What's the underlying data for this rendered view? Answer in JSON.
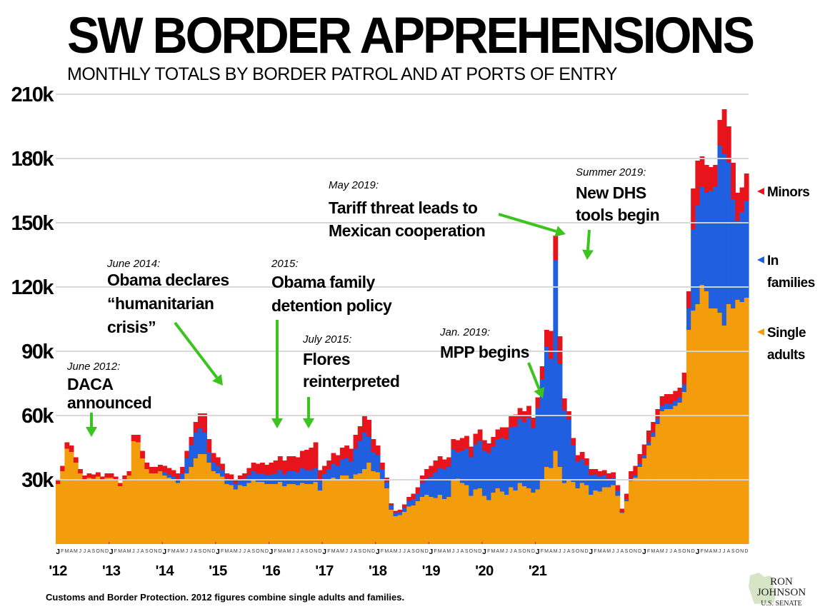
{
  "header": {
    "title": "SW BORDER APPREHENSIONS",
    "subtitle": "MONTHLY TOTALS BY BORDER PATROL AND AT PORTS OF ENTRY"
  },
  "footer": {
    "source": "Customs and Border Protection. 2012 figures combine single adults and families.",
    "logo_line1": "RON",
    "logo_line2": "JOHNSON",
    "logo_line3": "U.S. SENATE"
  },
  "chart_data": {
    "type": "bar",
    "stacked": true,
    "ylim": [
      0,
      210000
    ],
    "yticks": [
      30000,
      60000,
      90000,
      120000,
      150000,
      180000,
      210000
    ],
    "ytick_labels": [
      "30k",
      "60k",
      "90k",
      "120k",
      "150k",
      "180k",
      "210k"
    ],
    "grid": true,
    "month_letters": [
      "J",
      "F",
      "M",
      "A",
      "M",
      "J",
      "J",
      "A",
      "S",
      "O",
      "N",
      "D"
    ],
    "year_labels": [
      "'12",
      "'13",
      "'14",
      "'15",
      "'16",
      "'17",
      "'18",
      "'19",
      "'20",
      "'21"
    ],
    "colors": {
      "single_adults": "#f39c0c",
      "families": "#1f5fe0",
      "minors": "#e8141c",
      "annotation": "#3cc41e"
    },
    "legend": {
      "position": "right",
      "entries": [
        "Minors",
        "In families",
        "Single adults"
      ]
    },
    "series": [
      {
        "name": "Single adults",
        "values": [
          28000,
          34000,
          44500,
          43000,
          38000,
          33000,
          30000,
          31000,
          30500,
          31500,
          30000,
          31000,
          31000,
          30000,
          27000,
          30000,
          32000,
          48000,
          47500,
          40000,
          35000,
          33000,
          33000,
          34000,
          32000,
          31000,
          30000,
          28500,
          30000,
          33000,
          36000,
          40000,
          42000,
          42000,
          38000,
          34000,
          33000,
          31500,
          28000,
          27500,
          25500,
          27500,
          27000,
          28500,
          30000,
          29000,
          29000,
          28000,
          28000,
          28000,
          29000,
          27000,
          28000,
          28000,
          27500,
          28500,
          28000,
          28000,
          29000,
          25000,
          30000,
          30000,
          31000,
          30000,
          32000,
          32000,
          30500,
          32500,
          33000,
          35000,
          38000,
          34000,
          33500,
          30000,
          26000,
          16000,
          13000,
          13500,
          15000,
          17500,
          18000,
          20000,
          22000,
          23000,
          22000,
          21500,
          23000,
          21000,
          22000,
          30000,
          30500,
          28500,
          27500,
          22500,
          25500,
          26000,
          22500,
          20500,
          24000,
          26000,
          24500,
          23000,
          26500,
          25000,
          28500,
          27000,
          26000,
          24000,
          25500,
          30000,
          36000,
          35500,
          43500,
          36000,
          28500,
          30000,
          29000,
          26000,
          28500,
          27500,
          23000,
          25000,
          24500,
          26500,
          26500,
          27500,
          22500,
          14500,
          20000,
          29500,
          31000,
          36000,
          40000,
          46000,
          50000,
          56000,
          62000,
          63000,
          63000,
          64500,
          66000,
          71000,
          100000,
          109000,
          112000,
          121000,
          118000,
          110000,
          110000,
          108000,
          102000,
          112000,
          110000,
          114000,
          113000,
          115000
        ]
      },
      {
        "name": "In families",
        "values": [
          0,
          0,
          0,
          0,
          0,
          0,
          0,
          0,
          0,
          0,
          0,
          0,
          0,
          0,
          0,
          0,
          0,
          0,
          0,
          0,
          0,
          0,
          0,
          0,
          1500,
          1500,
          1500,
          1500,
          3000,
          7000,
          10000,
          12000,
          12000,
          10000,
          5000,
          4000,
          3500,
          3000,
          2500,
          2500,
          2500,
          2500,
          3500,
          3500,
          4000,
          4000,
          4000,
          4000,
          4500,
          5000,
          5500,
          5500,
          6000,
          6000,
          6000,
          7000,
          6500,
          6500,
          6500,
          4500,
          3000,
          5000,
          6500,
          6500,
          7500,
          8000,
          8000,
          12000,
          15000,
          17000,
          12000,
          9000,
          8000,
          5000,
          3000,
          2000,
          1500,
          1500,
          2000,
          2500,
          3000,
          3500,
          6500,
          7500,
          9500,
          12000,
          12500,
          14000,
          14000,
          14000,
          12500,
          15000,
          17000,
          18000,
          21000,
          22000,
          21000,
          22000,
          21500,
          23000,
          25000,
          26000,
          28000,
          30000,
          30000,
          30000,
          33000,
          30000,
          38000,
          47000,
          56000,
          51000,
          89000,
          48000,
          34000,
          28000,
          17000,
          12500,
          11000,
          9500,
          9000,
          7500,
          7000,
          5500,
          4000,
          3500,
          2500,
          500,
          1000,
          1000,
          1000,
          1500,
          1500,
          1500,
          2000,
          2500,
          2500,
          2500,
          2500,
          2500,
          2500,
          3500,
          10000,
          38000,
          46000,
          46000,
          46000,
          55000,
          57000,
          78000,
          80000,
          66000,
          51000,
          37000,
          42000,
          45000
        ]
      },
      {
        "name": "Minors",
        "values": [
          2000,
          2500,
          3000,
          3000,
          2500,
          2000,
          2000,
          2000,
          2000,
          2000,
          1500,
          2000,
          2000,
          1500,
          1500,
          2000,
          2000,
          3000,
          3500,
          3500,
          3000,
          3000,
          3000,
          3000,
          3000,
          3000,
          3000,
          3000,
          3000,
          3500,
          4000,
          5000,
          7000,
          9000,
          6000,
          4500,
          4000,
          3000,
          2500,
          2500,
          2000,
          2000,
          2500,
          3500,
          4000,
          4500,
          5000,
          5000,
          5500,
          6000,
          6500,
          6500,
          7000,
          7000,
          7000,
          8000,
          9500,
          10500,
          12000,
          5000,
          3500,
          4000,
          5000,
          5000,
          5500,
          6000,
          6000,
          6500,
          7000,
          8000,
          8000,
          6000,
          4500,
          3000,
          2000,
          1000,
          1000,
          1000,
          1500,
          2000,
          2500,
          3000,
          3500,
          4500,
          5000,
          5500,
          5500,
          4500,
          4500,
          5000,
          5500,
          6000,
          6000,
          5000,
          5000,
          5500,
          5000,
          4500,
          4500,
          4500,
          5000,
          5500,
          5500,
          5500,
          5000,
          5000,
          5500,
          5000,
          5000,
          6000,
          8000,
          13000,
          11500,
          13000,
          5500,
          4000,
          3500,
          3000,
          3500,
          3000,
          3000,
          2500,
          2500,
          2500,
          2500,
          2500,
          2500,
          1500,
          2500,
          3500,
          4500,
          4500,
          5000,
          5500,
          5000,
          4500,
          4500,
          4500,
          4500,
          4500,
          4500,
          5500,
          8000,
          19000,
          21000,
          14000,
          13000,
          11000,
          10000,
          12000,
          21000,
          17000,
          17000,
          13000,
          11500,
          13000
        ]
      }
    ],
    "annotations": [
      {
        "date": "June 2012:",
        "text": [
          "DACA",
          "announced"
        ]
      },
      {
        "date": "June 2014:",
        "text": [
          "Obama declares",
          "“humanitarian",
          "crisis”"
        ]
      },
      {
        "date": "2015:",
        "text": [
          "Obama family",
          "detention policy"
        ]
      },
      {
        "date": "July 2015:",
        "text": [
          "Flores",
          "reinterpreted"
        ]
      },
      {
        "date": "May 2019:",
        "text": [
          "Tariff threat leads to",
          "Mexican cooperation"
        ]
      },
      {
        "date": "Jan. 2019:",
        "text": [
          "MPP begins"
        ]
      },
      {
        "date": "Summer 2019:",
        "text": [
          "New DHS",
          "tools begin"
        ]
      }
    ]
  }
}
